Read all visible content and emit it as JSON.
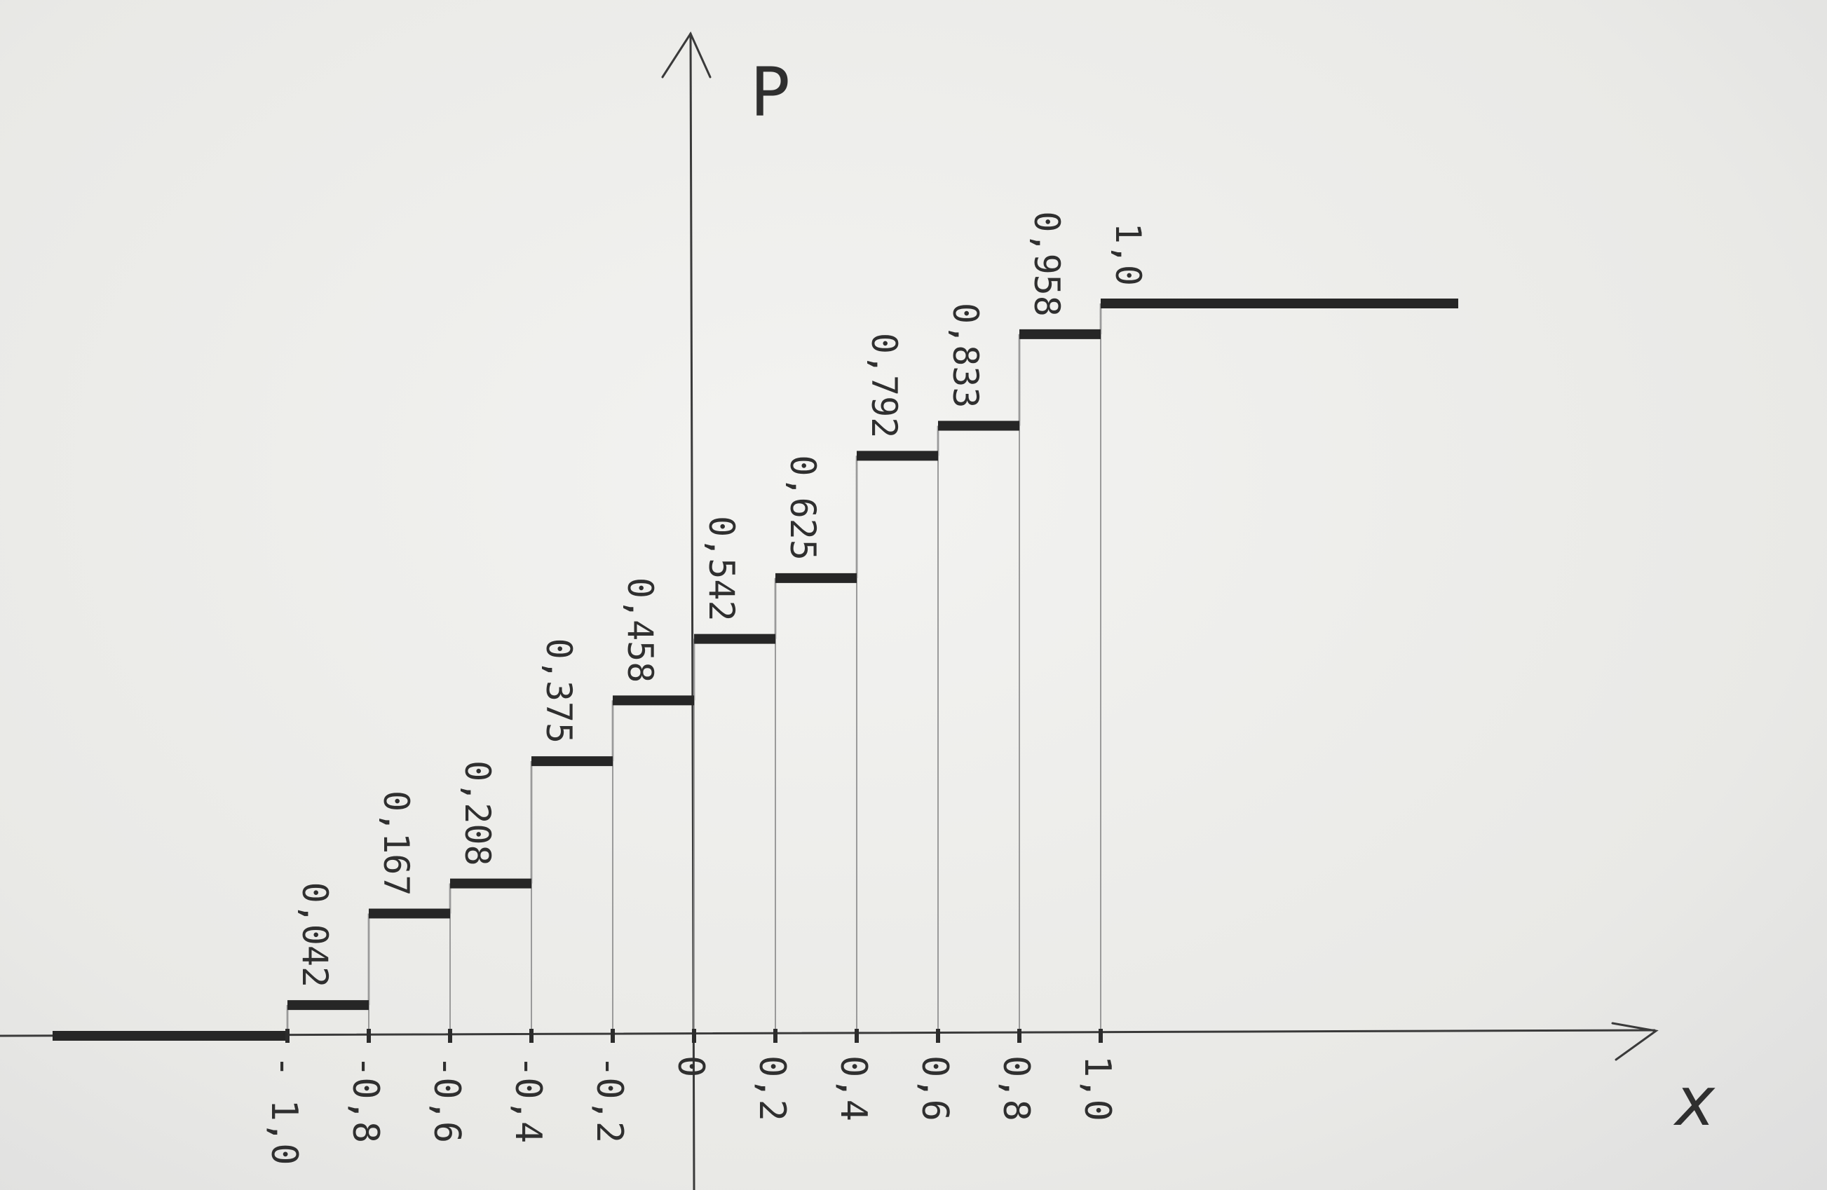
{
  "chart_data": {
    "type": "line",
    "subtype": "step-cdf",
    "title": "",
    "xlabel": "x",
    "ylabel": "P",
    "x_ticks": [
      "- 1,0",
      "-0,8",
      "-0,6",
      "-0,4",
      "-0,2",
      "0",
      "0,2",
      "0,4",
      "0,6",
      "0,8",
      "1,0"
    ],
    "x_values": [
      -1.0,
      -0.8,
      -0.6,
      -0.4,
      -0.2,
      0.0,
      0.2,
      0.4,
      0.6,
      0.8,
      1.0
    ],
    "step_labels": [
      "0,042",
      "0,167",
      "0,208",
      "0,375",
      "0,458",
      "0,542",
      "0,625",
      "0,792",
      "0,833",
      "0,958",
      "1,0"
    ],
    "step_values": [
      0.042,
      0.167,
      0.208,
      0.375,
      0.458,
      0.542,
      0.625,
      0.792,
      0.833,
      0.958,
      1.0
    ],
    "xlim": [
      -1.2,
      1.9
    ],
    "ylim": [
      0,
      1.25
    ],
    "grid": false
  }
}
